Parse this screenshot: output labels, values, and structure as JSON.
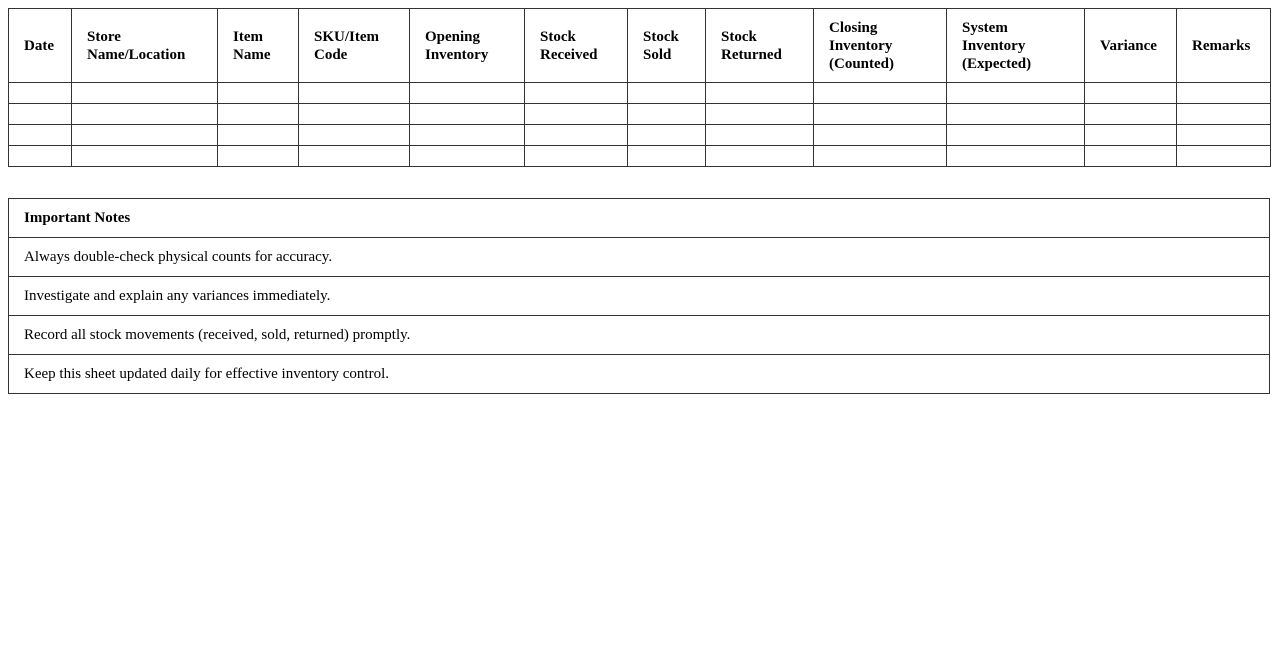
{
  "inventory_table": {
    "headers": [
      "Date",
      "Store Name/Location",
      "Item Name",
      "SKU/Item Code",
      "Opening Inventory",
      "Stock Received",
      "Stock Sold",
      "Stock Returned",
      "Closing Inventory (Counted)",
      "System Inventory (Expected)",
      "Variance",
      "Remarks"
    ],
    "empty_rows": 4
  },
  "notes": {
    "title": "Important Notes",
    "items": [
      "Always double-check physical counts for accuracy.",
      "Investigate and explain any variances immediately.",
      "Record all stock movements (received, sold, returned) promptly.",
      "Keep this sheet updated daily for effective inventory control."
    ]
  }
}
